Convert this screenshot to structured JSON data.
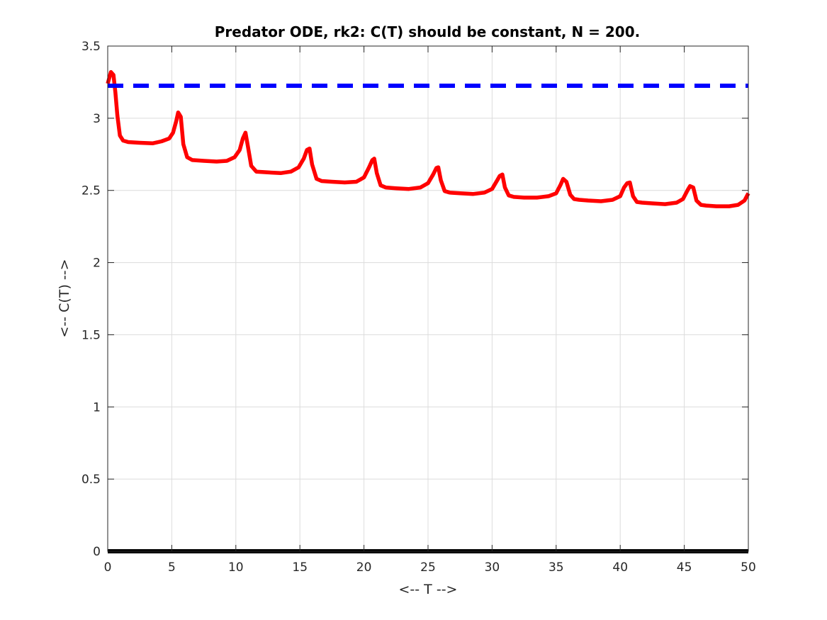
{
  "chart_data": {
    "type": "line",
    "title": "Predator ODE, rk2: C(T) should be constant, N = 200.",
    "xlabel": "<-- T -->",
    "ylabel": "<-- C(T) -->",
    "xlim": [
      0,
      50
    ],
    "ylim": [
      0,
      3.5
    ],
    "xticks": [
      "0",
      "5",
      "10",
      "15",
      "20",
      "25",
      "30",
      "35",
      "40",
      "45",
      "50"
    ],
    "yticks": [
      "0",
      "0.5",
      "1",
      "1.5",
      "2",
      "2.5",
      "3",
      "3.5"
    ],
    "grid": true,
    "series": [
      {
        "color": "#ff0000",
        "style": "solid",
        "x": [
          0,
          0.25,
          0.45,
          0.6,
          0.75,
          0.95,
          1.2,
          1.6,
          2.5,
          3.5,
          4.2,
          4.8,
          5.1,
          5.35,
          5.5,
          5.7,
          5.9,
          6.2,
          6.6,
          7.5,
          8.5,
          9.3,
          9.9,
          10.3,
          10.55,
          10.75,
          10.95,
          11.2,
          11.6,
          12.5,
          13.5,
          14.3,
          14.9,
          15.3,
          15.55,
          15.75,
          15.95,
          16.3,
          16.7,
          17.5,
          18.5,
          19.4,
          20,
          20.4,
          20.65,
          20.8,
          21,
          21.3,
          21.7,
          22.5,
          23.5,
          24.4,
          25,
          25.4,
          25.65,
          25.8,
          26,
          26.3,
          26.7,
          27.5,
          28.5,
          29.4,
          30,
          30.4,
          30.6,
          30.8,
          31,
          31.3,
          31.7,
          32.5,
          33.5,
          34.4,
          35,
          35.35,
          35.55,
          35.8,
          36.1,
          36.4,
          36.8,
          37.5,
          38.5,
          39.4,
          40,
          40.3,
          40.55,
          40.75,
          41,
          41.3,
          41.7,
          42.5,
          43.5,
          44.4,
          44.9,
          45.25,
          45.45,
          45.7,
          45.95,
          46.3,
          46.7,
          47.5,
          48.5,
          49.2,
          49.7,
          50
        ],
        "y": [
          3.24,
          3.32,
          3.3,
          3.18,
          3.02,
          2.88,
          2.845,
          2.835,
          2.83,
          2.826,
          2.84,
          2.86,
          2.9,
          2.98,
          3.04,
          3.01,
          2.82,
          2.73,
          2.71,
          2.705,
          2.7,
          2.705,
          2.73,
          2.78,
          2.86,
          2.9,
          2.8,
          2.67,
          2.63,
          2.625,
          2.62,
          2.63,
          2.66,
          2.72,
          2.78,
          2.79,
          2.68,
          2.58,
          2.565,
          2.56,
          2.555,
          2.56,
          2.59,
          2.66,
          2.71,
          2.72,
          2.62,
          2.535,
          2.52,
          2.515,
          2.51,
          2.52,
          2.55,
          2.61,
          2.655,
          2.66,
          2.57,
          2.495,
          2.485,
          2.48,
          2.475,
          2.485,
          2.51,
          2.57,
          2.6,
          2.61,
          2.52,
          2.465,
          2.455,
          2.45,
          2.45,
          2.46,
          2.48,
          2.54,
          2.58,
          2.56,
          2.47,
          2.44,
          2.435,
          2.43,
          2.425,
          2.435,
          2.46,
          2.52,
          2.55,
          2.555,
          2.46,
          2.42,
          2.415,
          2.41,
          2.405,
          2.415,
          2.44,
          2.5,
          2.53,
          2.52,
          2.43,
          2.4,
          2.395,
          2.39,
          2.39,
          2.4,
          2.43,
          2.48
        ]
      },
      {
        "color": "#0000ff",
        "style": "dashed",
        "x": [
          0,
          50
        ],
        "y": [
          3.225,
          3.225
        ]
      },
      {
        "color": "#000000",
        "style": "solid",
        "x": [
          0,
          50
        ],
        "y": [
          0,
          0
        ]
      }
    ]
  }
}
